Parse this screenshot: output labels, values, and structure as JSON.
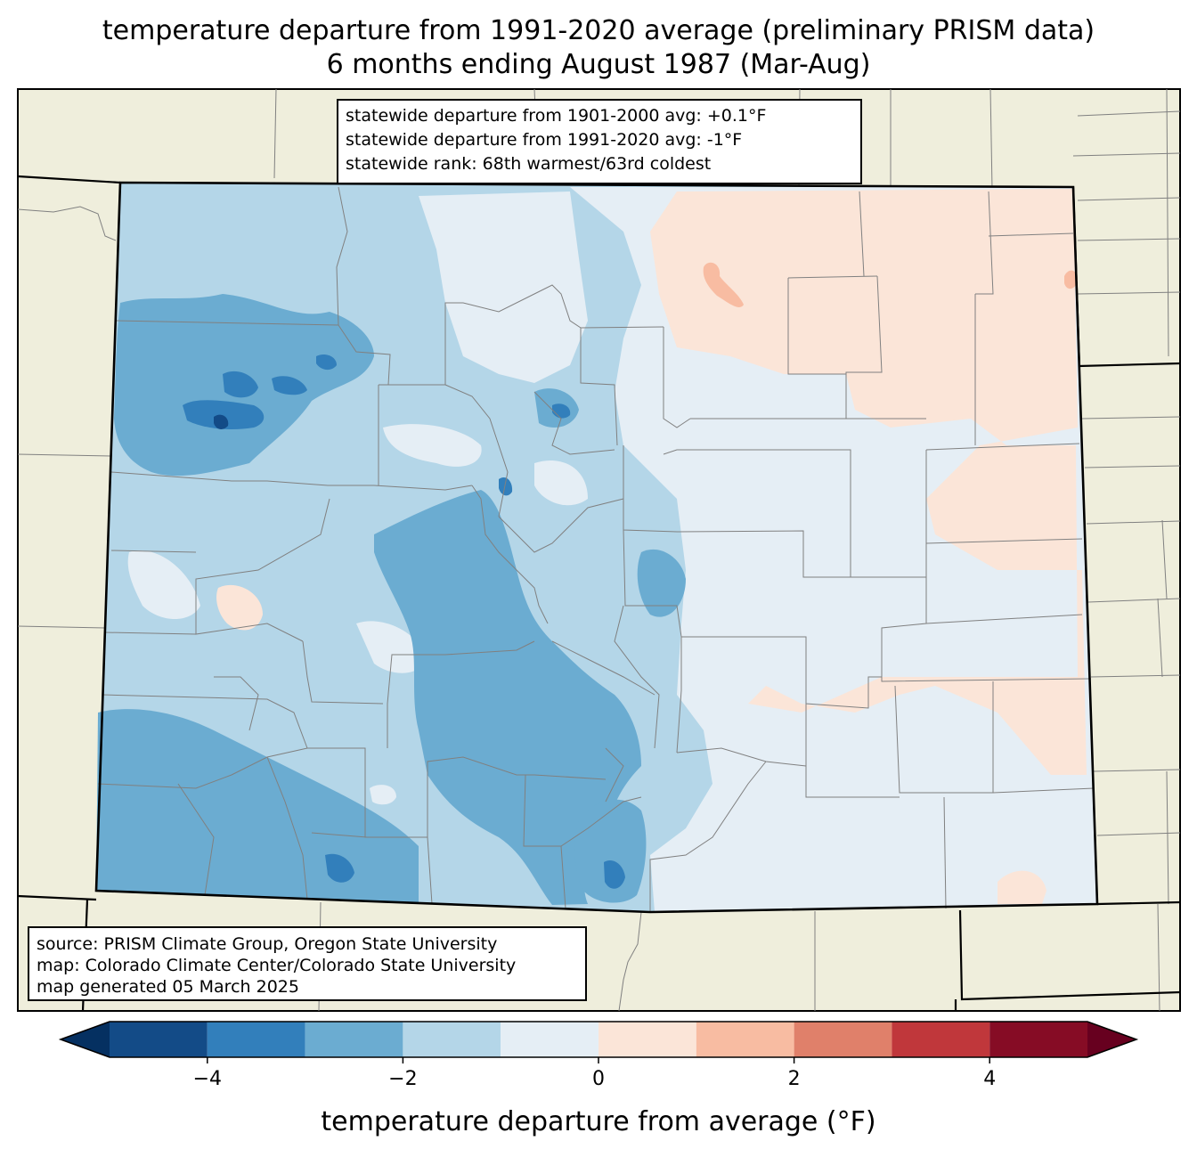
{
  "title": {
    "line1": "temperature departure from 1991-2020 average (preliminary PRISM data)",
    "line2": "6 months ending August 1987 (Mar-Aug)"
  },
  "stats": {
    "line1": "statewide departure from 1901-2000 avg: +0.1°F",
    "line2": "statewide departure from 1991-2020 avg: -1°F",
    "line3": "statewide rank: 68th warmest/63rd coldest"
  },
  "source": {
    "line1": "source: PRISM Climate Group, Oregon State University",
    "line2": "map: Colorado Climate Center/Colorado State University",
    "line3": "map generated 05 March 2025"
  },
  "colorbar": {
    "label": "temperature departure from average (°F)",
    "ticks": [
      "−4",
      "−2",
      "0",
      "2",
      "4"
    ],
    "bins": [
      {
        "min": -5,
        "max": -4,
        "color": "#134b87"
      },
      {
        "min": -4,
        "max": -3,
        "color": "#327fbb"
      },
      {
        "min": -3,
        "max": -2,
        "color": "#6bacd1"
      },
      {
        "min": -2,
        "max": -1,
        "color": "#b4d6e8"
      },
      {
        "min": -1,
        "max": 0,
        "color": "#e5eef5"
      },
      {
        "min": 0,
        "max": 1,
        "color": "#fbe5d8"
      },
      {
        "min": 1,
        "max": 2,
        "color": "#f8bca2"
      },
      {
        "min": 2,
        "max": 3,
        "color": "#e0806a"
      },
      {
        "min": 3,
        "max": 4,
        "color": "#c0373b"
      },
      {
        "min": 4,
        "max": 5,
        "color": "#860c25"
      }
    ],
    "under_color": "#053061",
    "over_color": "#67001f"
  },
  "colors": {
    "land": "#efeedc",
    "state_border": "#000000",
    "county_border": "#808080"
  }
}
